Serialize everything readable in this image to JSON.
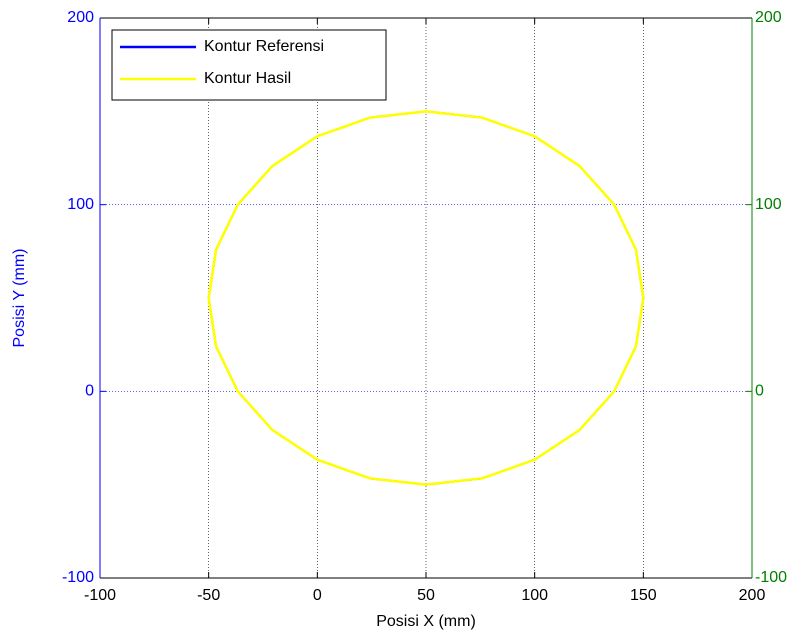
{
  "chart_data": {
    "type": "line",
    "xlabel": "Posisi X (mm)",
    "ylabel": "Posisi Y (mm)",
    "xlim": [
      -100,
      200
    ],
    "xticks": [
      -100,
      -50,
      0,
      50,
      100,
      150,
      200
    ],
    "ylim": [
      -100,
      200
    ],
    "yticks": [
      -100,
      0,
      100,
      200
    ],
    "y2lim": [
      -100,
      200
    ],
    "y2ticks": [
      -100,
      0,
      100,
      200
    ],
    "grid": true,
    "legend": "upper left",
    "series": [
      {
        "name": "Kontur Referensi",
        "color": "#0000ff",
        "x": [
          150,
          146.6,
          136.6,
          120.7,
          100,
          75.9,
          50,
          24.1,
          0,
          -20.7,
          -36.6,
          -46.6,
          -50,
          -46.6,
          -36.6,
          -20.7,
          0,
          24.1,
          50,
          75.9,
          100,
          120.7,
          136.6,
          146.6,
          150
        ],
        "values": [
          50,
          75.9,
          100,
          120.7,
          136.6,
          146.6,
          150,
          146.6,
          136.6,
          120.7,
          100,
          75.9,
          50,
          24.1,
          0,
          -20.7,
          -36.6,
          -46.6,
          -50,
          -46.6,
          -36.6,
          -20.7,
          0,
          24.1,
          50
        ]
      },
      {
        "name": "Kontur Hasil",
        "color": "#ffff00",
        "x": [
          150,
          146.6,
          136.6,
          120.7,
          100,
          75.9,
          50,
          24.1,
          0,
          -20.7,
          -36.6,
          -46.6,
          -50,
          -46.6,
          -36.6,
          -20.7,
          0,
          24.1,
          50,
          75.9,
          100,
          120.7,
          136.6,
          146.6,
          150
        ],
        "values": [
          50,
          75.9,
          100,
          120.7,
          136.6,
          146.6,
          150,
          146.6,
          136.6,
          120.7,
          100,
          75.9,
          50,
          24.1,
          0,
          -20.7,
          -36.6,
          -46.6,
          -50,
          -46.6,
          -36.6,
          -20.7,
          0,
          24.1,
          50
        ]
      }
    ]
  }
}
